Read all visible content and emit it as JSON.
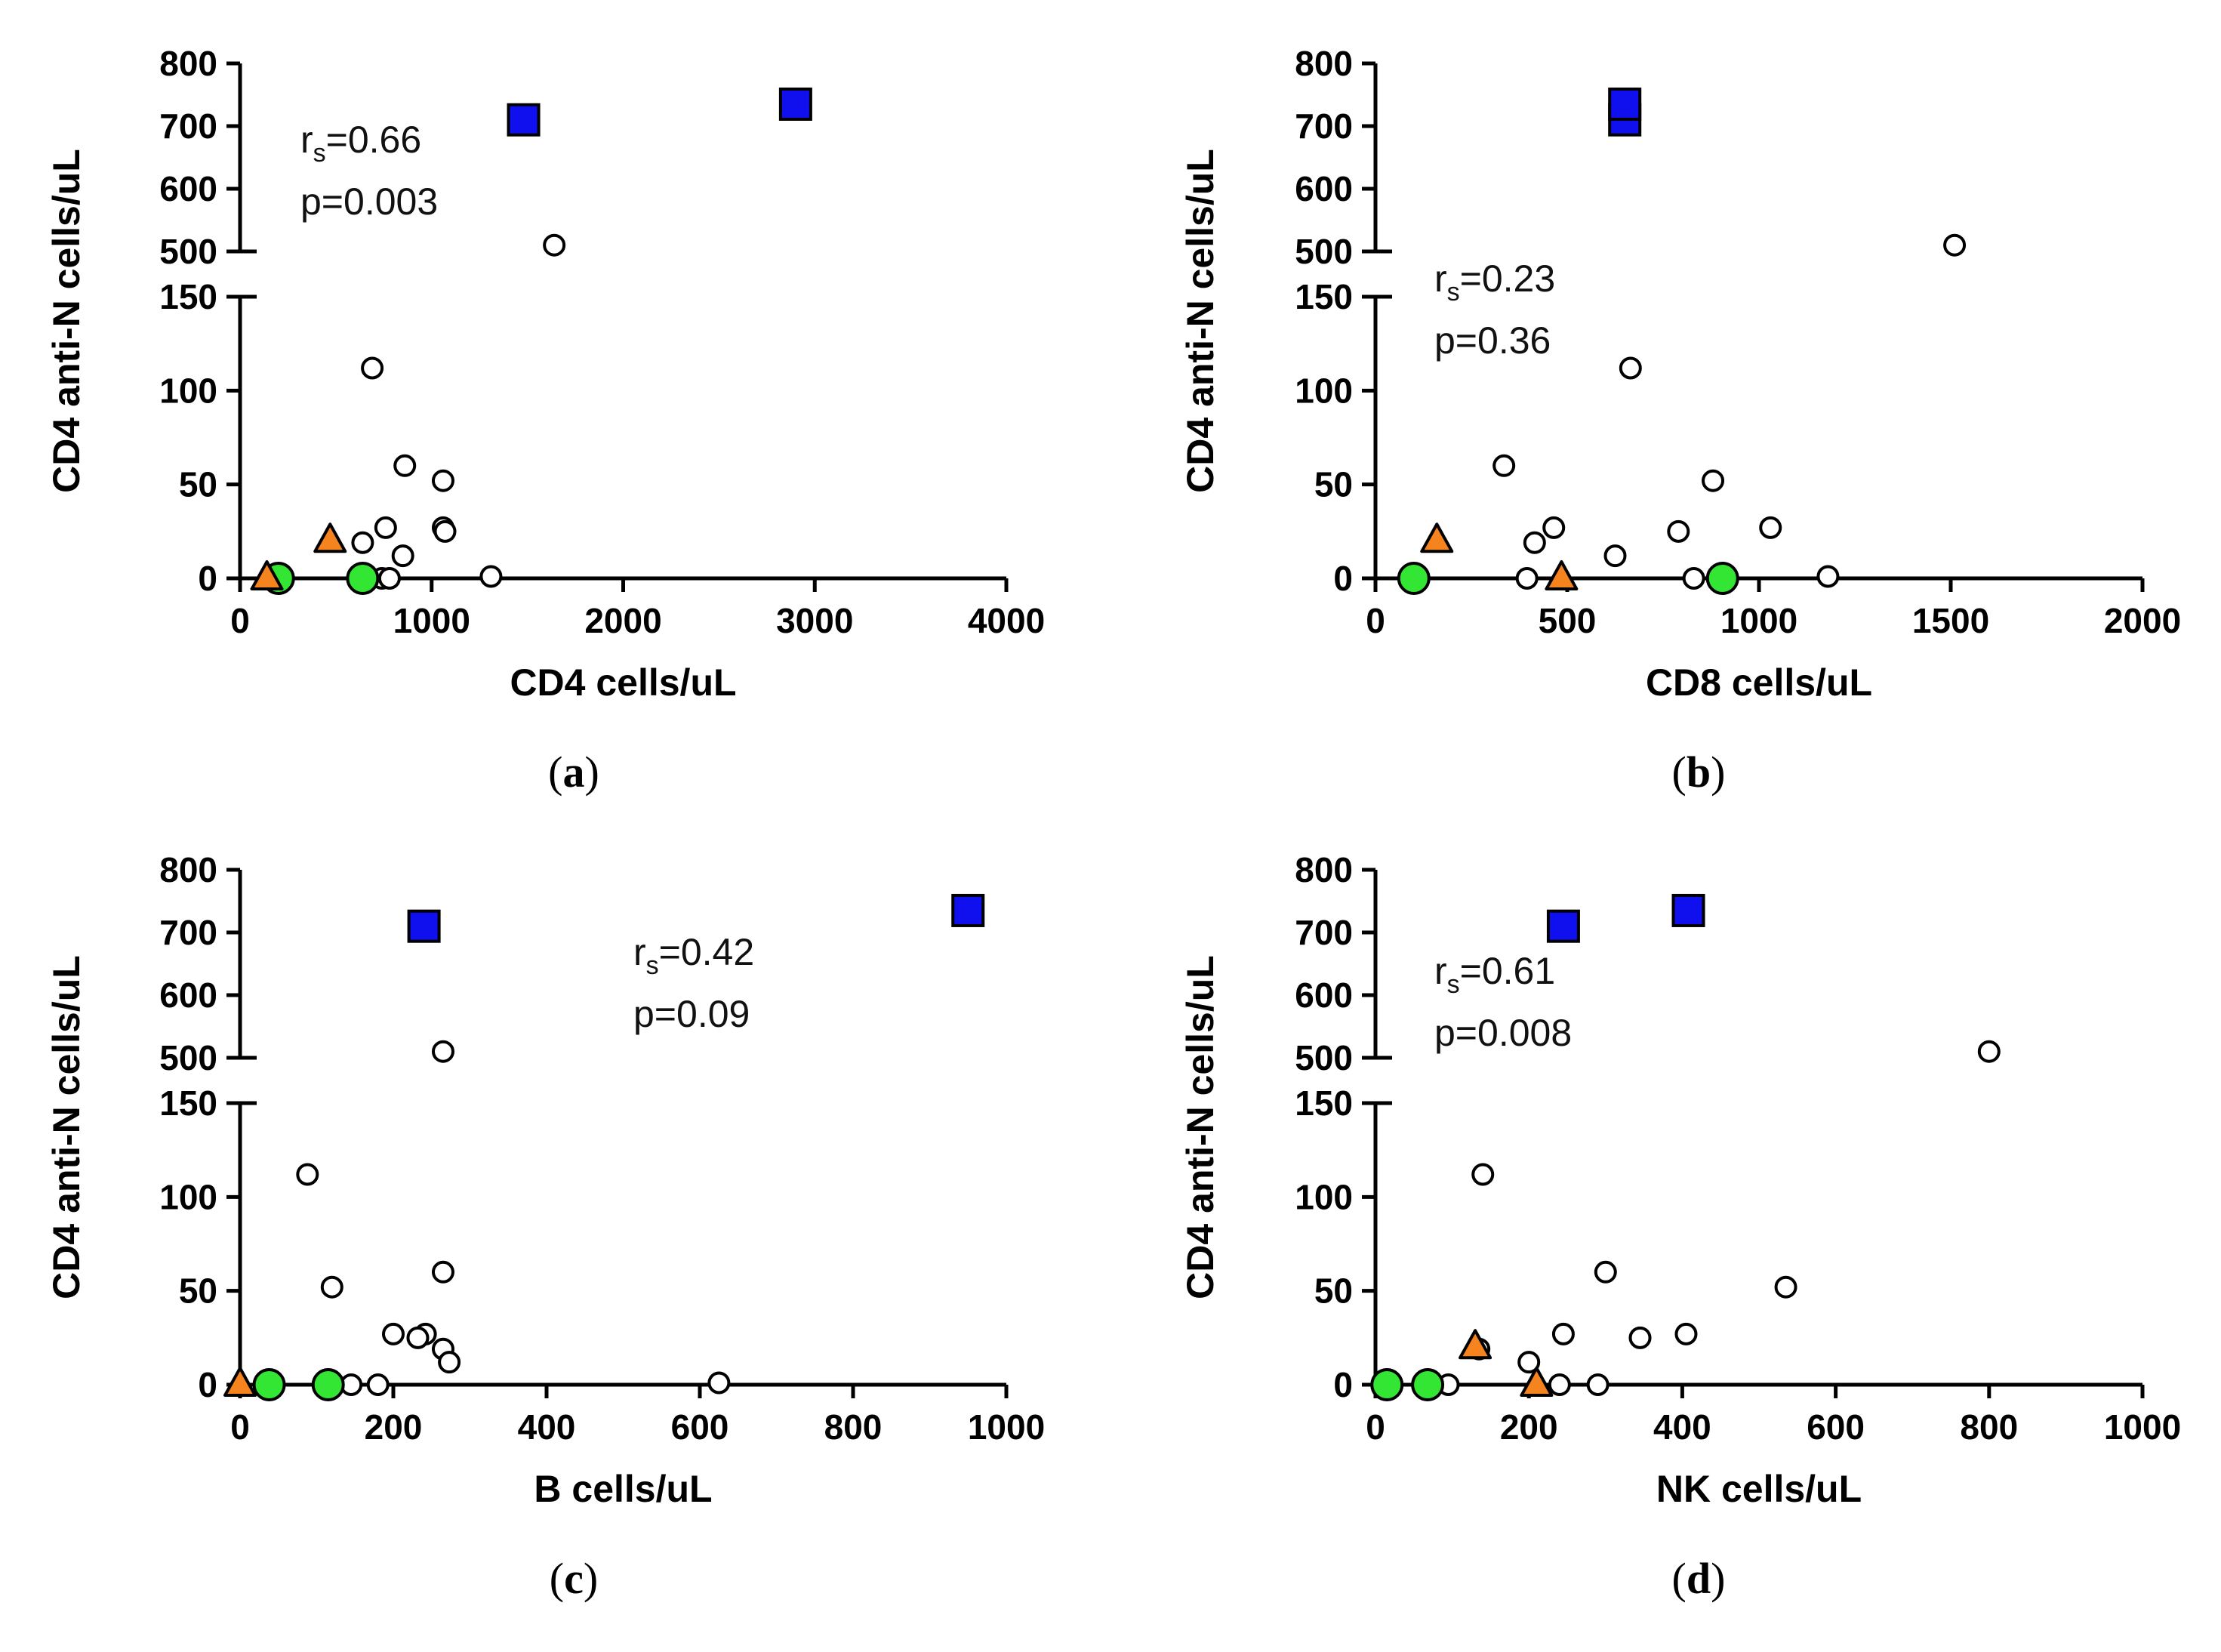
{
  "colors": {
    "other": "#ffffff",
    "green_circle": "#33e633",
    "orange_triangle": "#f5841f",
    "blue_square": "#1010ee"
  },
  "chart_data": [
    {
      "type": "scatter",
      "panel_letter": "a",
      "xlabel": "CD4 cells/uL",
      "ylabel": "CD4 anti-N cells/uL",
      "xlim": [
        0,
        4000
      ],
      "xticks": [
        "0",
        "1000",
        "2000",
        "3000",
        "4000"
      ],
      "ylim_lower": [
        0,
        150
      ],
      "ylim_upper": [
        500,
        800
      ],
      "yticks_lower": [
        "0",
        "50",
        "100",
        "150"
      ],
      "yticks_upper": [
        "500",
        "600",
        "700",
        "800"
      ],
      "stat_r_main": "r",
      "stat_r_sub": "s",
      "stat_r_value": "=0.66",
      "stat_p": "p=0.003",
      "series": [
        {
          "marker": "circle-open",
          "points": [
            [
              690,
              112
            ],
            [
              860,
              60
            ],
            [
              1060,
              52
            ],
            [
              760,
              27
            ],
            [
              1060,
              27
            ],
            [
              1070,
              25
            ],
            [
              640,
              19
            ],
            [
              850,
              12
            ],
            [
              1310,
              1
            ],
            [
              740,
              0
            ],
            [
              780,
              0
            ],
            [
              1640,
              510
            ]
          ]
        },
        {
          "marker": "circle-green",
          "points": [
            [
              200,
              0
            ],
            [
              640,
              0
            ]
          ]
        },
        {
          "marker": "triangle-orange",
          "points": [
            [
              470,
              20
            ],
            [
              140,
              0
            ]
          ]
        },
        {
          "marker": "square-blue",
          "points": [
            [
              1480,
              710
            ],
            [
              2900,
              735
            ]
          ]
        }
      ]
    },
    {
      "type": "scatter",
      "panel_letter": "b",
      "xlabel": "CD8 cells/uL",
      "ylabel": "CD4 anti-N cells/uL",
      "xlim": [
        0,
        2000
      ],
      "xticks": [
        "0",
        "500",
        "1000",
        "1500",
        "2000"
      ],
      "ylim_lower": [
        0,
        150
      ],
      "ylim_upper": [
        500,
        800
      ],
      "yticks_lower": [
        "0",
        "50",
        "100",
        "150"
      ],
      "yticks_upper": [
        "500",
        "600",
        "700",
        "800"
      ],
      "stat_r_main": "r",
      "stat_r_sub": "s",
      "stat_r_value": "=0.23",
      "stat_p": "p=0.36",
      "series": [
        {
          "marker": "circle-open",
          "points": [
            [
              665,
              112
            ],
            [
              335,
              60
            ],
            [
              880,
              52
            ],
            [
              465,
              27
            ],
            [
              1030,
              27
            ],
            [
              790,
              25
            ],
            [
              415,
              19
            ],
            [
              625,
              12
            ],
            [
              395,
              0
            ],
            [
              830,
              0
            ],
            [
              1180,
              1
            ],
            [
              1510,
              510
            ]
          ]
        },
        {
          "marker": "circle-green",
          "points": [
            [
              100,
              0
            ],
            [
              905,
              0
            ]
          ]
        },
        {
          "marker": "triangle-orange",
          "points": [
            [
              160,
              20
            ],
            [
              485,
              0
            ]
          ]
        },
        {
          "marker": "square-blue",
          "points": [
            [
              650,
              710
            ],
            [
              650,
              735
            ]
          ]
        }
      ]
    },
    {
      "type": "scatter",
      "panel_letter": "c",
      "xlabel": "B cells/uL",
      "ylabel": "CD4 anti-N cells/uL",
      "xlim": [
        0,
        1000
      ],
      "xticks": [
        "0",
        "200",
        "400",
        "600",
        "800",
        "1000"
      ],
      "ylim_lower": [
        0,
        150
      ],
      "ylim_upper": [
        500,
        800
      ],
      "yticks_lower": [
        "0",
        "50",
        "100",
        "150"
      ],
      "yticks_upper": [
        "500",
        "600",
        "700",
        "800"
      ],
      "stat_r_main": "r",
      "stat_r_sub": "s",
      "stat_r_value": "=0.42",
      "stat_p": "p=0.09",
      "series": [
        {
          "marker": "circle-open",
          "points": [
            [
              88,
              112
            ],
            [
              265,
              60
            ],
            [
              120,
              52
            ],
            [
              200,
              27
            ],
            [
              242,
              27
            ],
            [
              232,
              25
            ],
            [
              265,
              19
            ],
            [
              273,
              12
            ],
            [
              145,
              0
            ],
            [
              180,
              0
            ],
            [
              625,
              1
            ],
            [
              265,
              510
            ]
          ]
        },
        {
          "marker": "circle-green",
          "points": [
            [
              38,
              0
            ],
            [
              115,
              0
            ]
          ]
        },
        {
          "marker": "triangle-orange",
          "points": [
            [
              0,
              0
            ]
          ]
        },
        {
          "marker": "square-blue",
          "points": [
            [
              240,
              710
            ],
            [
              950,
              735
            ]
          ]
        }
      ]
    },
    {
      "type": "scatter",
      "panel_letter": "d",
      "xlabel": "NK cells/uL",
      "ylabel": "CD4 anti-N cells/uL",
      "xlim": [
        0,
        1000
      ],
      "xticks": [
        "0",
        "200",
        "400",
        "600",
        "800",
        "1000"
      ],
      "ylim_lower": [
        0,
        150
      ],
      "ylim_upper": [
        500,
        800
      ],
      "yticks_lower": [
        "0",
        "50",
        "100",
        "150"
      ],
      "yticks_upper": [
        "500",
        "600",
        "700",
        "800"
      ],
      "stat_r_main": "r",
      "stat_r_sub": "s",
      "stat_r_value": "=0.61",
      "stat_p": "p=0.008",
      "series": [
        {
          "marker": "circle-open",
          "points": [
            [
              140,
              112
            ],
            [
              300,
              60
            ],
            [
              535,
              52
            ],
            [
              245,
              27
            ],
            [
              405,
              27
            ],
            [
              345,
              25
            ],
            [
              135,
              19
            ],
            [
              200,
              12
            ],
            [
              95,
              0
            ],
            [
              240,
              0
            ],
            [
              290,
              0
            ],
            [
              800,
              510
            ]
          ]
        },
        {
          "marker": "circle-green",
          "points": [
            [
              15,
              0
            ],
            [
              68,
              0
            ]
          ]
        },
        {
          "marker": "triangle-orange",
          "points": [
            [
              130,
              20
            ],
            [
              210,
              0
            ]
          ]
        },
        {
          "marker": "square-blue",
          "points": [
            [
              245,
              710
            ],
            [
              408,
              735
            ]
          ]
        }
      ]
    }
  ]
}
